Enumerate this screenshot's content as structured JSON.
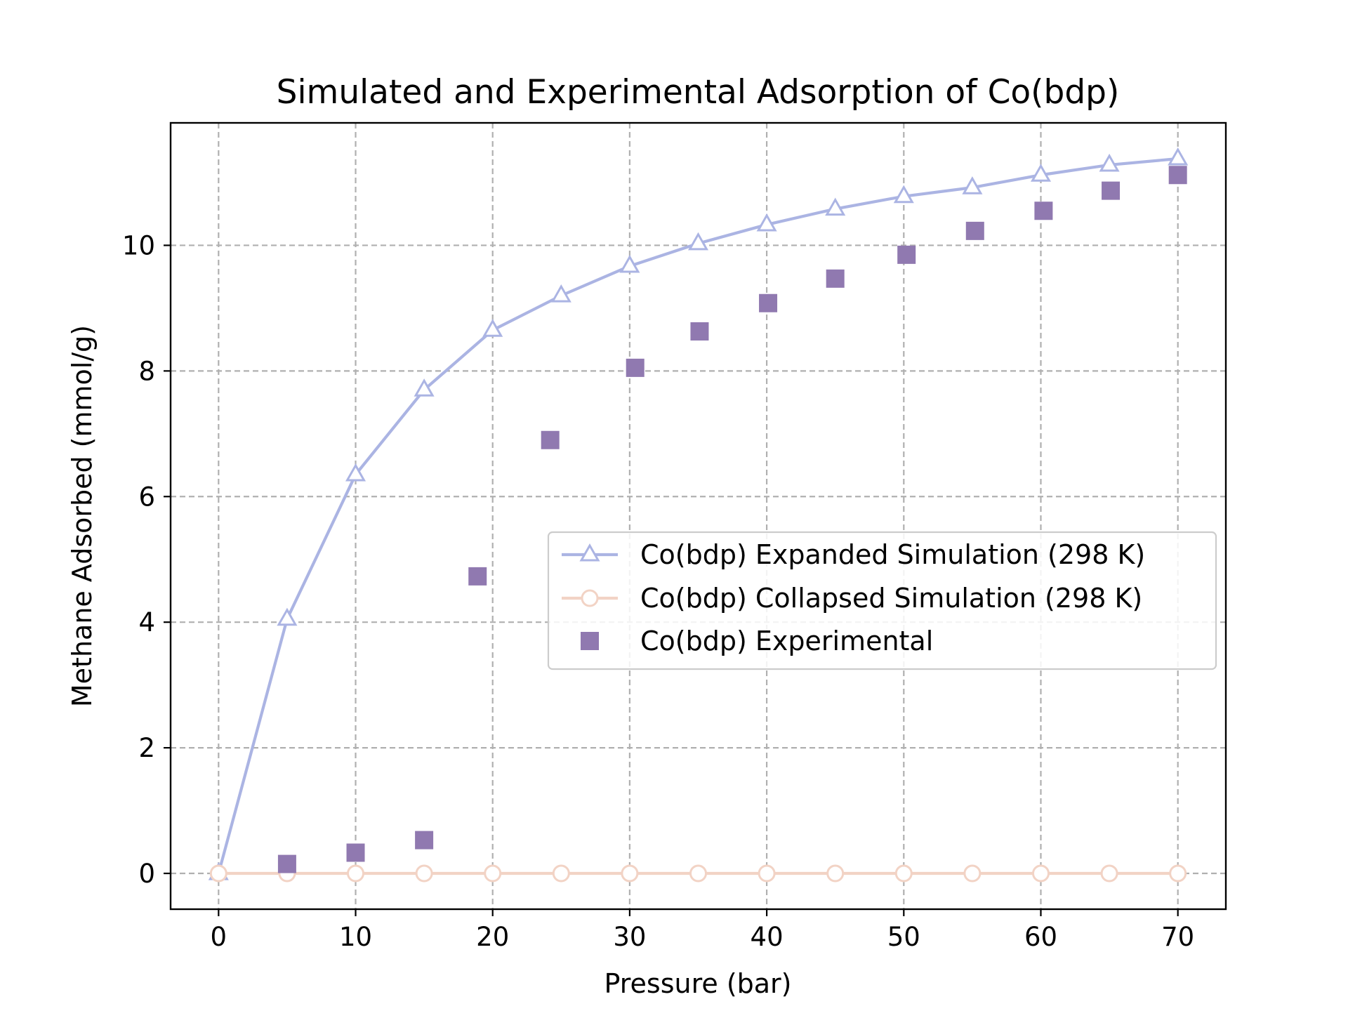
{
  "chart_data": {
    "type": "line",
    "title": "Simulated and Experimental Adsorption of Co(bdp)",
    "xlabel": "Pressure (bar)",
    "ylabel": "Methane Adsorbed (mmol/g)",
    "xlim": [
      -3.5,
      73.5
    ],
    "ylim": [
      -0.57,
      11.95
    ],
    "xticks": [
      0,
      10,
      20,
      30,
      40,
      50,
      60,
      70
    ],
    "yticks": [
      0,
      2,
      4,
      6,
      8,
      10
    ],
    "grid": true,
    "legend_position": "center-right",
    "series": [
      {
        "name": "Co(bdp) Expanded Simulation (298 K)",
        "style": "line-triangle",
        "color": "#abb4e3",
        "x": [
          0,
          5,
          10,
          15,
          20,
          25,
          30,
          35,
          40,
          45,
          50,
          55,
          60,
          65,
          70
        ],
        "y": [
          0.0,
          4.05,
          6.35,
          7.7,
          8.65,
          9.2,
          9.67,
          10.03,
          10.33,
          10.58,
          10.78,
          10.92,
          11.12,
          11.28,
          11.38
        ]
      },
      {
        "name": "Co(bdp) Collapsed Simulation (298 K)",
        "style": "line-circle",
        "color": "#f2d3c5",
        "x": [
          0,
          5,
          10,
          15,
          20,
          25,
          30,
          35,
          40,
          45,
          50,
          55,
          60,
          65,
          70
        ],
        "y": [
          0,
          0,
          0,
          0,
          0,
          0,
          0,
          0,
          0,
          0,
          0,
          0,
          0,
          0,
          0
        ]
      },
      {
        "name": "Co(bdp) Experimental",
        "style": "square",
        "color": "#9079b0",
        "x": [
          5,
          10,
          15,
          18.9,
          24.2,
          30.4,
          35.1,
          40.1,
          45,
          50.2,
          55.2,
          60.2,
          65.1,
          70
        ],
        "y": [
          0.15,
          0.33,
          0.53,
          4.73,
          6.9,
          8.05,
          8.63,
          9.08,
          9.47,
          9.85,
          10.23,
          10.55,
          10.87,
          11.12
        ]
      }
    ]
  }
}
